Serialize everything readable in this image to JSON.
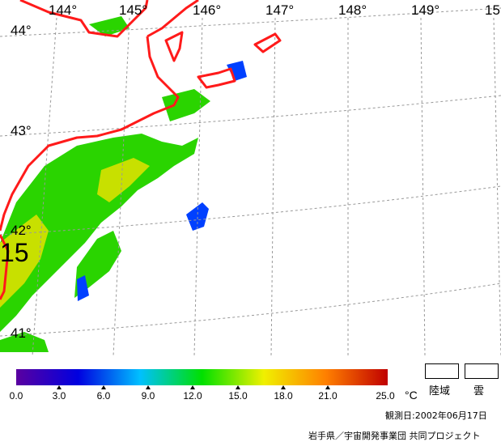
{
  "map": {
    "lon_labels": [
      "144°",
      "145°",
      "146°",
      "147°",
      "148°",
      "149°",
      "15"
    ],
    "lat_labels": [
      "44°",
      "43°",
      "42°",
      "41°"
    ],
    "contour_label": "15",
    "colors": {
      "coastline": "#ff1a1a",
      "grid": "#999999",
      "sst_warm": "#c8e000",
      "sst_mid": "#2ad400",
      "sst_cool": "#0040ff"
    }
  },
  "legend": {
    "colorbar_stops": [
      "#5a00a0",
      "#0000e0",
      "#00c0ff",
      "#00e000",
      "#f0f000",
      "#ff8000",
      "#c00000"
    ],
    "ticks": [
      "0.0",
      "3.0",
      "6.0",
      "9.0",
      "12.0",
      "15.0",
      "18.0",
      "21.0",
      "25.0"
    ],
    "unit": "°C",
    "land_label": "陸域",
    "cloud_label": "雲"
  },
  "footer": {
    "observation_date": "観測日:2002年06月17日",
    "credit": "岩手県／宇宙開発事業団  共同プロジェクト"
  }
}
